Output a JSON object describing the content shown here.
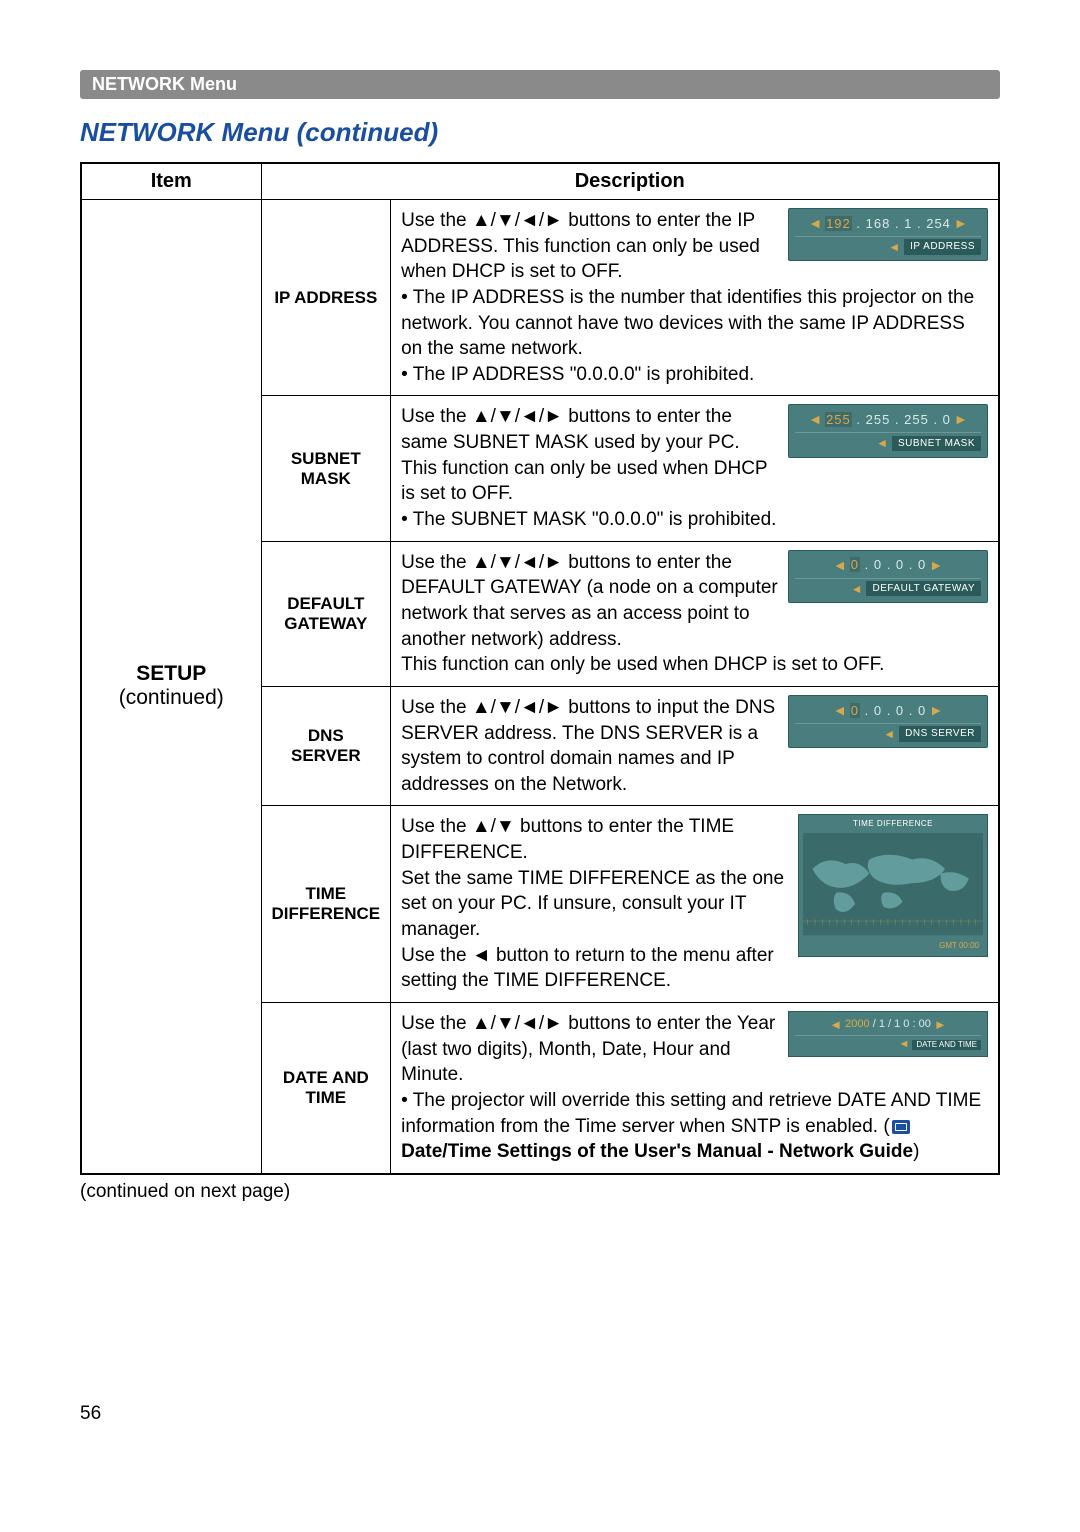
{
  "header_bar": "NETWORK Menu",
  "section_title": "NETWORK Menu (continued)",
  "table": {
    "header": {
      "item": "Item",
      "description": "Description"
    },
    "setup_label": "SETUP",
    "setup_sub": "(continued)",
    "rows": [
      {
        "subitem": "IP ADDRESS",
        "intro": "Use the ▲/▼/◄/► buttons to enter the IP ADDRESS. This function can only be used when DHCP is set to OFF.",
        "bullets": [
          "The IP ADDRESS is the number that identifies this projector on the network. You cannot have two devices with the same IP ADDRESS on the same network.",
          "The IP ADDRESS \"0.0.0.0\" is prohibited."
        ],
        "osd": {
          "label": "IP ADDRESS",
          "hl": "192",
          "rest": " . 168 .   1  . 254"
        }
      },
      {
        "subitem": "SUBNET MASK",
        "intro": "Use the ▲/▼/◄/► buttons to enter the same SUBNET MASK used by your PC. This function can only be used when DHCP is set to OFF.",
        "bullets": [
          "The SUBNET MASK \"0.0.0.0\" is prohibited."
        ],
        "osd": {
          "label": "SUBNET MASK",
          "hl": "255",
          "rest": " . 255 . 255 .   0"
        }
      },
      {
        "subitem": "DEFAULT GATEWAY",
        "intro": "Use the ▲/▼/◄/► buttons to enter the DEFAULT GATEWAY (a node on a computer network that serves as an access point to another network) address.",
        "extra": "This function can only be used when DHCP is set to OFF.",
        "osd": {
          "label": "DEFAULT GATEWAY",
          "hl": "0",
          "rest": "   .   0  .   0  .   0"
        }
      },
      {
        "subitem": "DNS SERVER",
        "intro": "Use the ▲/▼/◄/► buttons to input the DNS SERVER address. The DNS SERVER is a system to control domain names and IP addresses on the Network.",
        "osd": {
          "label": "DNS SERVER",
          "hl": "0",
          "rest": "   .   0  .   0  .   0"
        }
      },
      {
        "subitem": "TIME DIFFERENCE",
        "intro_lines": [
          "Use the ▲/▼ buttons to enter the TIME DIFFERENCE.",
          "Set the same TIME DIFFERENCE as the one set on your PC. If unsure, consult your IT manager.",
          "Use the ◄ button to return to the menu after setting the TIME DIFFERENCE."
        ],
        "osd_big": {
          "title": "TIME DIFFERENCE",
          "gmt": "GMT 00:00"
        }
      },
      {
        "subitem": "DATE AND TIME",
        "intro": "Use the ▲/▼/◄/► buttons to enter the Year (last two digits), Month, Date, Hour and Minute.",
        "bullet_prefix": "The projector will override this setting and retrieve DATE AND TIME information from the Time server when SNTP is enabled. (",
        "bullet_ref": " Date/Time Settings of the User's Manual - Network Guide",
        "bullet_suffix": ")",
        "osd_date": {
          "hl": "2000",
          "rest": " /  1  /  1      0 : 00",
          "label": "DATE AND TIME"
        }
      }
    ]
  },
  "continued": "(continued on next page)",
  "page_number": "56"
}
